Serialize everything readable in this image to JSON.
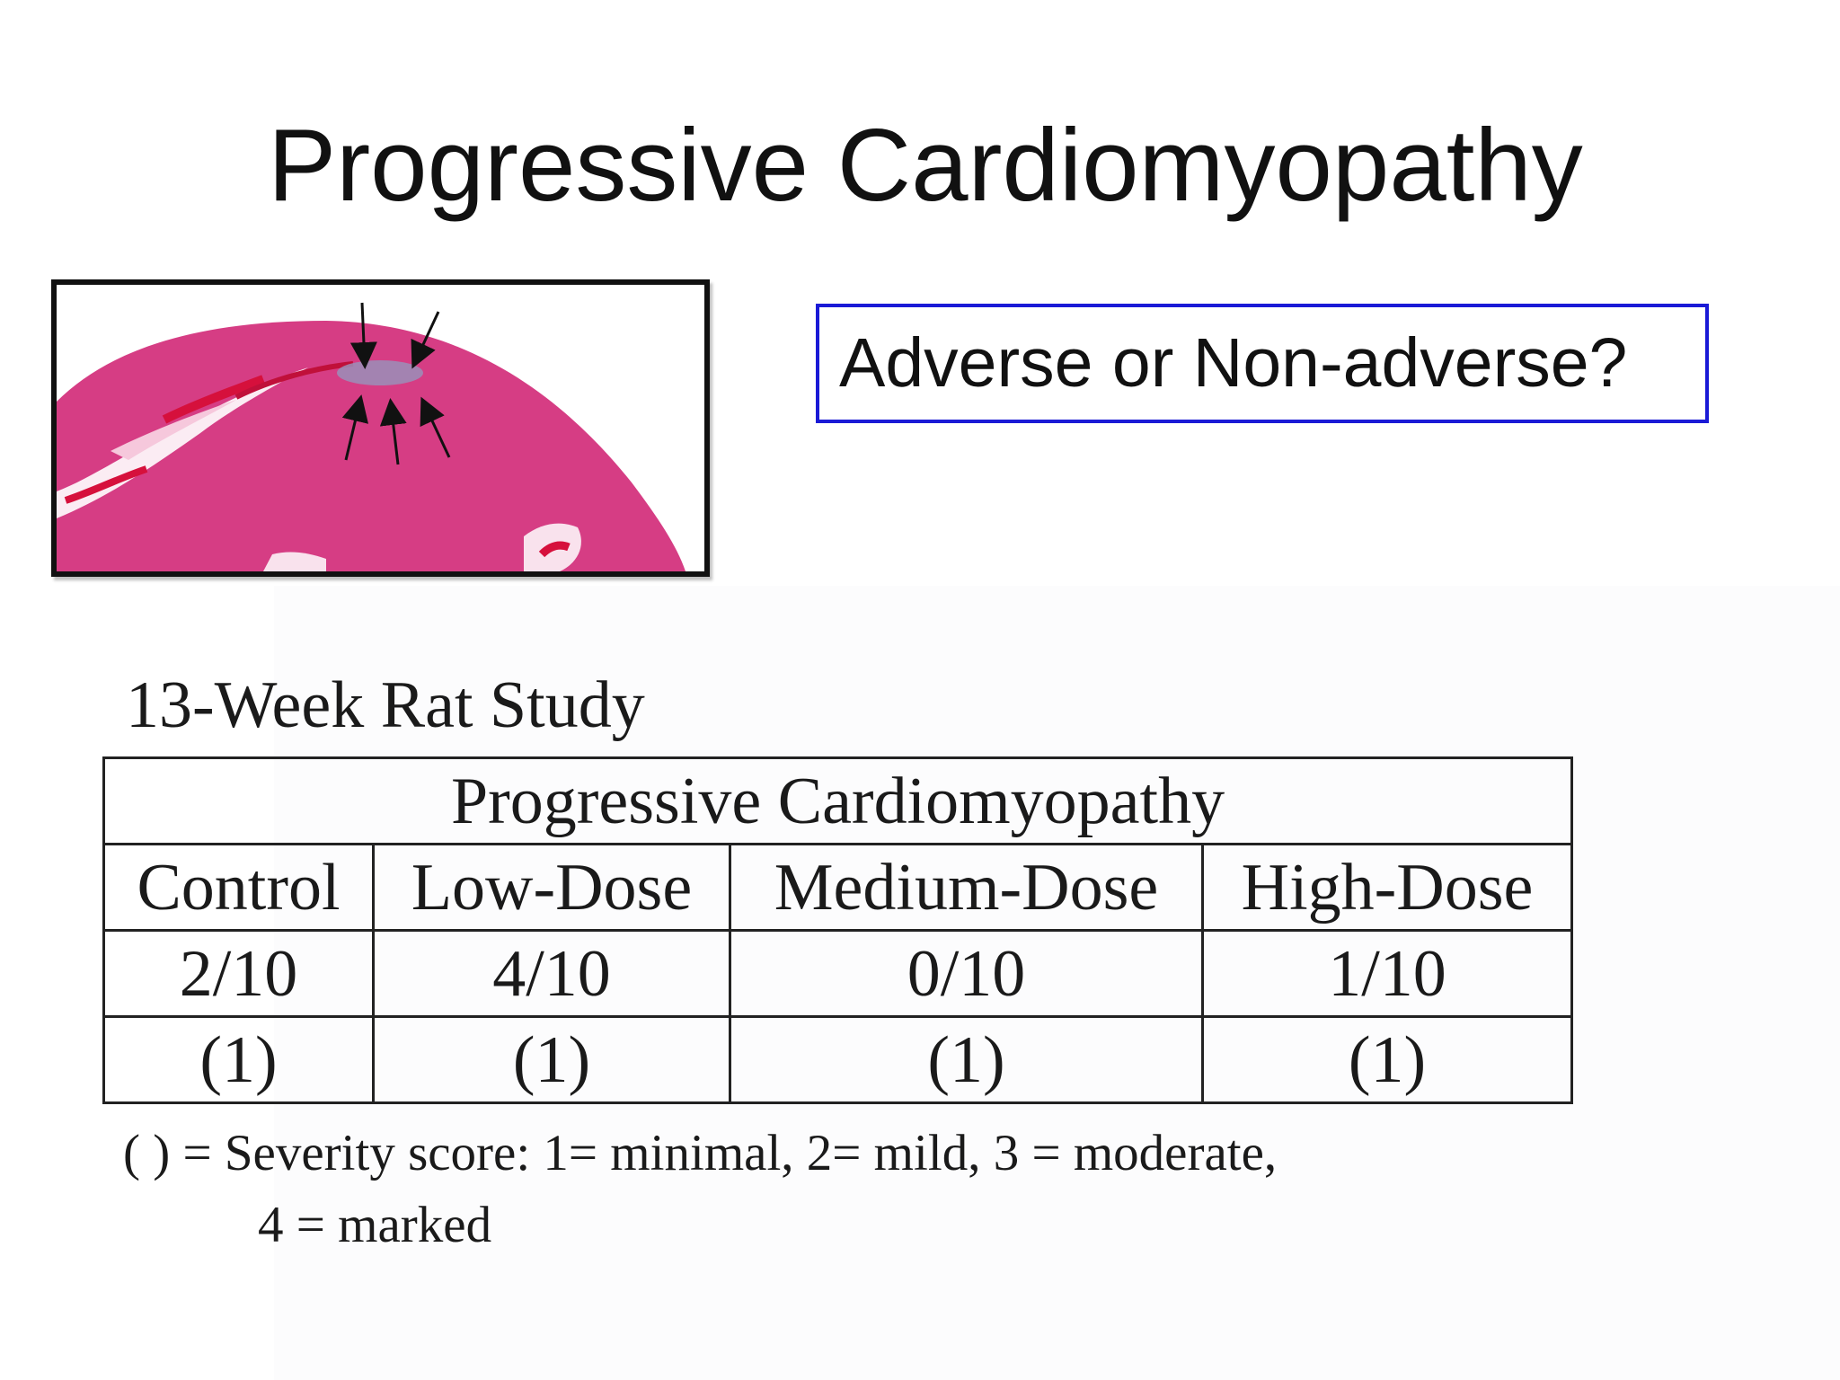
{
  "slide": {
    "title": "Progressive Cardiomyopathy",
    "question": "Adverse or Non-adverse?"
  },
  "histology": {
    "description_icon": "heart-tissue-section-image",
    "arrow_count": 5,
    "colors": {
      "tissue": "#d63d84",
      "lesion": "#9a8fb8",
      "vessel": "#d6103c"
    }
  },
  "study": {
    "title": "13-Week Rat Study",
    "table_header": "Progressive Cardiomyopathy",
    "columns": [
      "Control",
      "Low-Dose",
      "Medium-Dose",
      "High-Dose"
    ],
    "incidence": [
      "2/10",
      "4/10",
      "0/10",
      "1/10"
    ],
    "severity": [
      "(1)",
      "(1)",
      "(1)",
      "(1)"
    ],
    "footnote_line1": "( ) = Severity score: 1= minimal, 2= mild, 3 = moderate,",
    "footnote_line2": "4 = marked"
  },
  "colors": {
    "question_border": "#1a1ad6",
    "text": "#111111"
  }
}
